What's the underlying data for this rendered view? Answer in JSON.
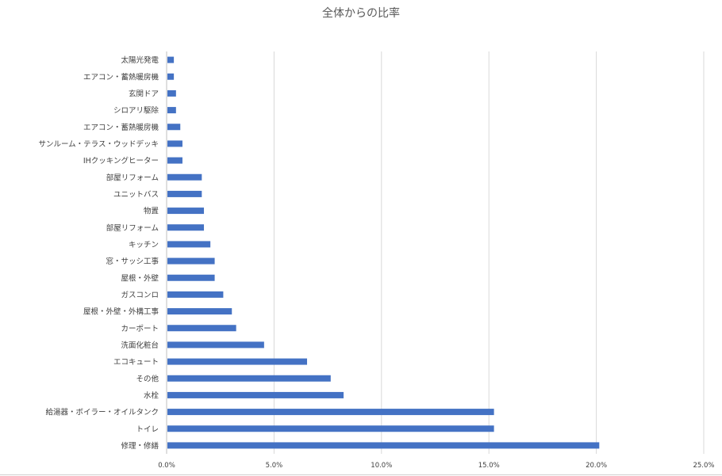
{
  "chart_data": {
    "type": "bar",
    "orientation": "horizontal",
    "title": "全体からの比率",
    "xlabel": "",
    "ylabel": "",
    "xlim": [
      0,
      0.25
    ],
    "ticks": [
      "0.0%",
      "5.0%",
      "10.0%",
      "15.0%",
      "20.0%",
      "25.0%"
    ],
    "tick_values": [
      0,
      0.05,
      0.1,
      0.15,
      0.2,
      0.25
    ],
    "grid": true,
    "legend": "none",
    "color": "#4472C4",
    "categories": [
      "太陽光発電",
      "エアコン・蓄熱暖房機",
      "玄関ドア",
      "シロアリ駆除",
      "エアコン・蓄熱暖房機",
      "サンルーム・テラス・ウッドデッキ",
      "IHクッキングヒーター",
      "部屋リフォーム",
      "ユニットバス",
      "物置",
      "部屋リフォーム",
      "キッチン",
      "窓・サッシ工事",
      "屋根・外壁",
      "ガスコンロ",
      "屋根・外壁・外構工事",
      "カーポート",
      "洗面化粧台",
      "エコキュート",
      "その他",
      "水栓",
      "給湯器・ボイラー・オイルタンク",
      "トイレ",
      "修理・修繕"
    ],
    "values": [
      0.003,
      0.003,
      0.004,
      0.004,
      0.006,
      0.007,
      0.007,
      0.016,
      0.016,
      0.017,
      0.017,
      0.02,
      0.022,
      0.022,
      0.026,
      0.03,
      0.032,
      0.045,
      0.065,
      0.076,
      0.082,
      0.152,
      0.152,
      0.201
    ]
  }
}
